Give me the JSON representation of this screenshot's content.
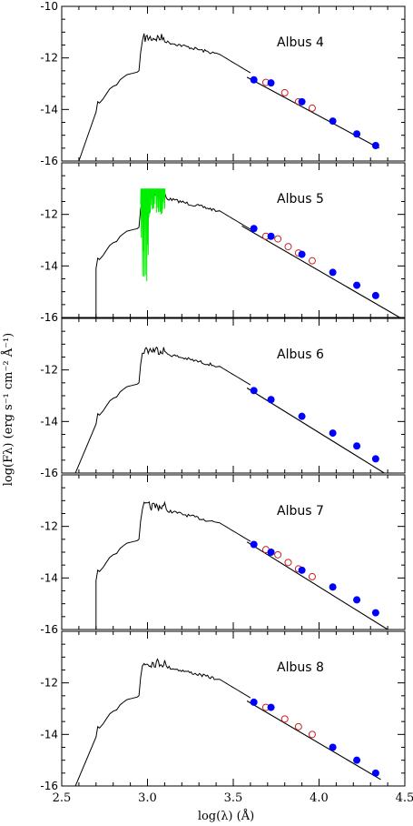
{
  "chart_data": {
    "type": "line",
    "xlabel": "log(λ) (Å)",
    "ylabel": "log(Fλ) (erg s⁻¹ cm⁻² Å⁻¹)",
    "xlim": [
      2.5,
      4.5
    ],
    "ylim": [
      -16,
      -10
    ],
    "xticks": [
      "2.5",
      "3.0",
      "3.5",
      "4.0",
      "4.5"
    ],
    "yticks": [
      "-10",
      "-12",
      "-14",
      "-16"
    ],
    "panels": [
      {
        "title": "Albus 4",
        "model_start": 2.6,
        "blue_points": [
          [
            3.62,
            -12.85
          ],
          [
            3.72,
            -12.97
          ],
          [
            3.9,
            -13.7
          ],
          [
            4.08,
            -14.45
          ],
          [
            4.22,
            -14.95
          ],
          [
            4.33,
            -15.4
          ]
        ],
        "red_circles": [
          [
            3.69,
            -12.95
          ],
          [
            3.8,
            -13.35
          ],
          [
            3.88,
            -13.7
          ],
          [
            3.96,
            -13.95
          ]
        ],
        "fit_line": [
          [
            3.58,
            -12.75
          ],
          [
            4.35,
            -15.5
          ]
        ],
        "green_spectrum": false
      },
      {
        "title": "Albus 5",
        "model_start": 2.7,
        "blue_points": [
          [
            3.62,
            -12.55
          ],
          [
            3.72,
            -12.85
          ],
          [
            3.9,
            -13.55
          ],
          [
            4.08,
            -14.25
          ],
          [
            4.22,
            -14.75
          ],
          [
            4.33,
            -15.15
          ]
        ],
        "red_circles": [
          [
            3.69,
            -12.85
          ],
          [
            3.76,
            -12.95
          ],
          [
            3.82,
            -13.25
          ],
          [
            3.88,
            -13.5
          ],
          [
            3.96,
            -13.8
          ]
        ],
        "fit_line": [
          [
            3.55,
            -12.45
          ],
          [
            4.47,
            -16.0
          ]
        ],
        "green_spectrum": true
      },
      {
        "title": "Albus 6",
        "model_start": 2.58,
        "blue_points": [
          [
            3.62,
            -12.8
          ],
          [
            3.72,
            -13.15
          ],
          [
            3.9,
            -13.8
          ],
          [
            4.08,
            -14.45
          ],
          [
            4.22,
            -14.95
          ],
          [
            4.33,
            -15.45
          ]
        ],
        "red_circles": [],
        "fit_line": [
          [
            3.58,
            -12.7
          ],
          [
            4.38,
            -16.0
          ]
        ],
        "green_spectrum": false
      },
      {
        "title": "Albus 7",
        "model_start": 2.7,
        "blue_points": [
          [
            3.62,
            -12.7
          ],
          [
            3.72,
            -13.0
          ],
          [
            3.9,
            -13.7
          ],
          [
            4.08,
            -14.35
          ],
          [
            4.22,
            -14.85
          ],
          [
            4.33,
            -15.35
          ]
        ],
        "red_circles": [
          [
            3.69,
            -12.9
          ],
          [
            3.76,
            -13.1
          ],
          [
            3.82,
            -13.4
          ],
          [
            3.88,
            -13.65
          ],
          [
            3.96,
            -13.95
          ]
        ],
        "fit_line": [
          [
            3.58,
            -12.6
          ],
          [
            4.4,
            -16.0
          ]
        ],
        "green_spectrum": false
      },
      {
        "title": "Albus 8",
        "model_start": 2.58,
        "blue_points": [
          [
            3.62,
            -12.75
          ],
          [
            3.72,
            -12.95
          ],
          [
            4.08,
            -14.5
          ],
          [
            4.22,
            -15.0
          ],
          [
            4.33,
            -15.5
          ]
        ],
        "red_circles": [
          [
            3.69,
            -12.95
          ],
          [
            3.8,
            -13.4
          ],
          [
            3.88,
            -13.7
          ],
          [
            3.96,
            -14.0
          ]
        ],
        "fit_line": [
          [
            3.58,
            -12.7
          ],
          [
            4.36,
            -15.75
          ]
        ],
        "green_spectrum": false
      }
    ],
    "colors": {
      "blue_points": "#0000ff",
      "red_circles": "#cc2222",
      "green_spectrum": "#00ee00",
      "model": "#000000"
    }
  }
}
